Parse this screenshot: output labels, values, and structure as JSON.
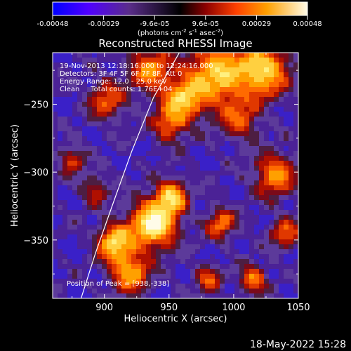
{
  "chart_data": {
    "type": "heatmap",
    "title": "Reconstructed RHESSI Image",
    "xlabel": "Heliocentric X (arcsec)",
    "ylabel": "Heliocentric Y (arcsec)",
    "xlim": [
      860,
      1050
    ],
    "ylim": [
      -393,
      -212
    ],
    "x_ticks": [
      "900",
      "950",
      "1000",
      "1050"
    ],
    "y_ticks": [
      "-250",
      "-300",
      "-350"
    ],
    "colorbar": {
      "min": -0.00048,
      "max": 0.00048,
      "tick_labels": [
        "-0.00048",
        "-0.00029",
        "-9.6e-05",
        "9.6e-05",
        "0.00029",
        "0.00048"
      ],
      "unit_text": "(photons cm",
      "unit_sup1": "-2",
      "unit_mid": " s",
      "unit_sup2": "-1",
      "unit_mid2": " asec",
      "unit_sup3": "-2",
      "unit_end": ")"
    },
    "info_lines": [
      "19-Nov-2013 12:18:16.000 to 12:24:16.000",
      "Detectors: 3F 4F 5F 6F 7F 8F, Att 0",
      "Energy Range: 12.0 - 25.0 keV",
      "Clean     Total counts: 1.76E+04"
    ],
    "peak_text": "Position of Peak = [938,-338]",
    "peak": {
      "x": 938,
      "y": -338,
      "value": 0.00048
    },
    "limb_arc": [
      [
        882,
        -393
      ],
      [
        893,
        -360
      ],
      [
        906,
        -325
      ],
      [
        921,
        -285
      ],
      [
        938,
        -245
      ],
      [
        958,
        -212
      ]
    ],
    "hot_spots": [
      {
        "x": 938,
        "y": -338,
        "sigma": 12,
        "amp": 1.0
      },
      {
        "x": 908,
        "y": -352,
        "sigma": 9,
        "amp": 0.8
      },
      {
        "x": 952,
        "y": -318,
        "sigma": 8,
        "amp": 0.72
      },
      {
        "x": 920,
        "y": -374,
        "sigma": 10,
        "amp": 0.65
      },
      {
        "x": 987,
        "y": -228,
        "sigma": 16,
        "amp": 0.75
      },
      {
        "x": 1023,
        "y": -225,
        "sigma": 13,
        "amp": 0.78
      },
      {
        "x": 960,
        "y": -247,
        "sigma": 11,
        "amp": 0.68
      },
      {
        "x": 902,
        "y": -247,
        "sigma": 10,
        "amp": 0.45
      },
      {
        "x": 1032,
        "y": -302,
        "sigma": 11,
        "amp": 0.58
      },
      {
        "x": 1040,
        "y": -345,
        "sigma": 8,
        "amp": 0.45
      },
      {
        "x": 990,
        "y": -338,
        "sigma": 8,
        "amp": 0.5
      },
      {
        "x": 875,
        "y": -291,
        "sigma": 7,
        "amp": 0.4
      },
      {
        "x": 980,
        "y": -379,
        "sigma": 7,
        "amp": 0.42
      },
      {
        "x": 1015,
        "y": -379,
        "sigma": 7,
        "amp": 0.55
      },
      {
        "x": 950,
        "y": -266,
        "sigma": 9,
        "amp": 0.4
      },
      {
        "x": 1005,
        "y": -262,
        "sigma": 10,
        "amp": 0.42
      },
      {
        "x": 893,
        "y": -314,
        "sigma": 7,
        "amp": 0.38
      },
      {
        "x": 935,
        "y": -224,
        "sigma": 11,
        "amp": 0.55
      }
    ]
  },
  "footer": {
    "date": "18-May-2022 15:28"
  }
}
